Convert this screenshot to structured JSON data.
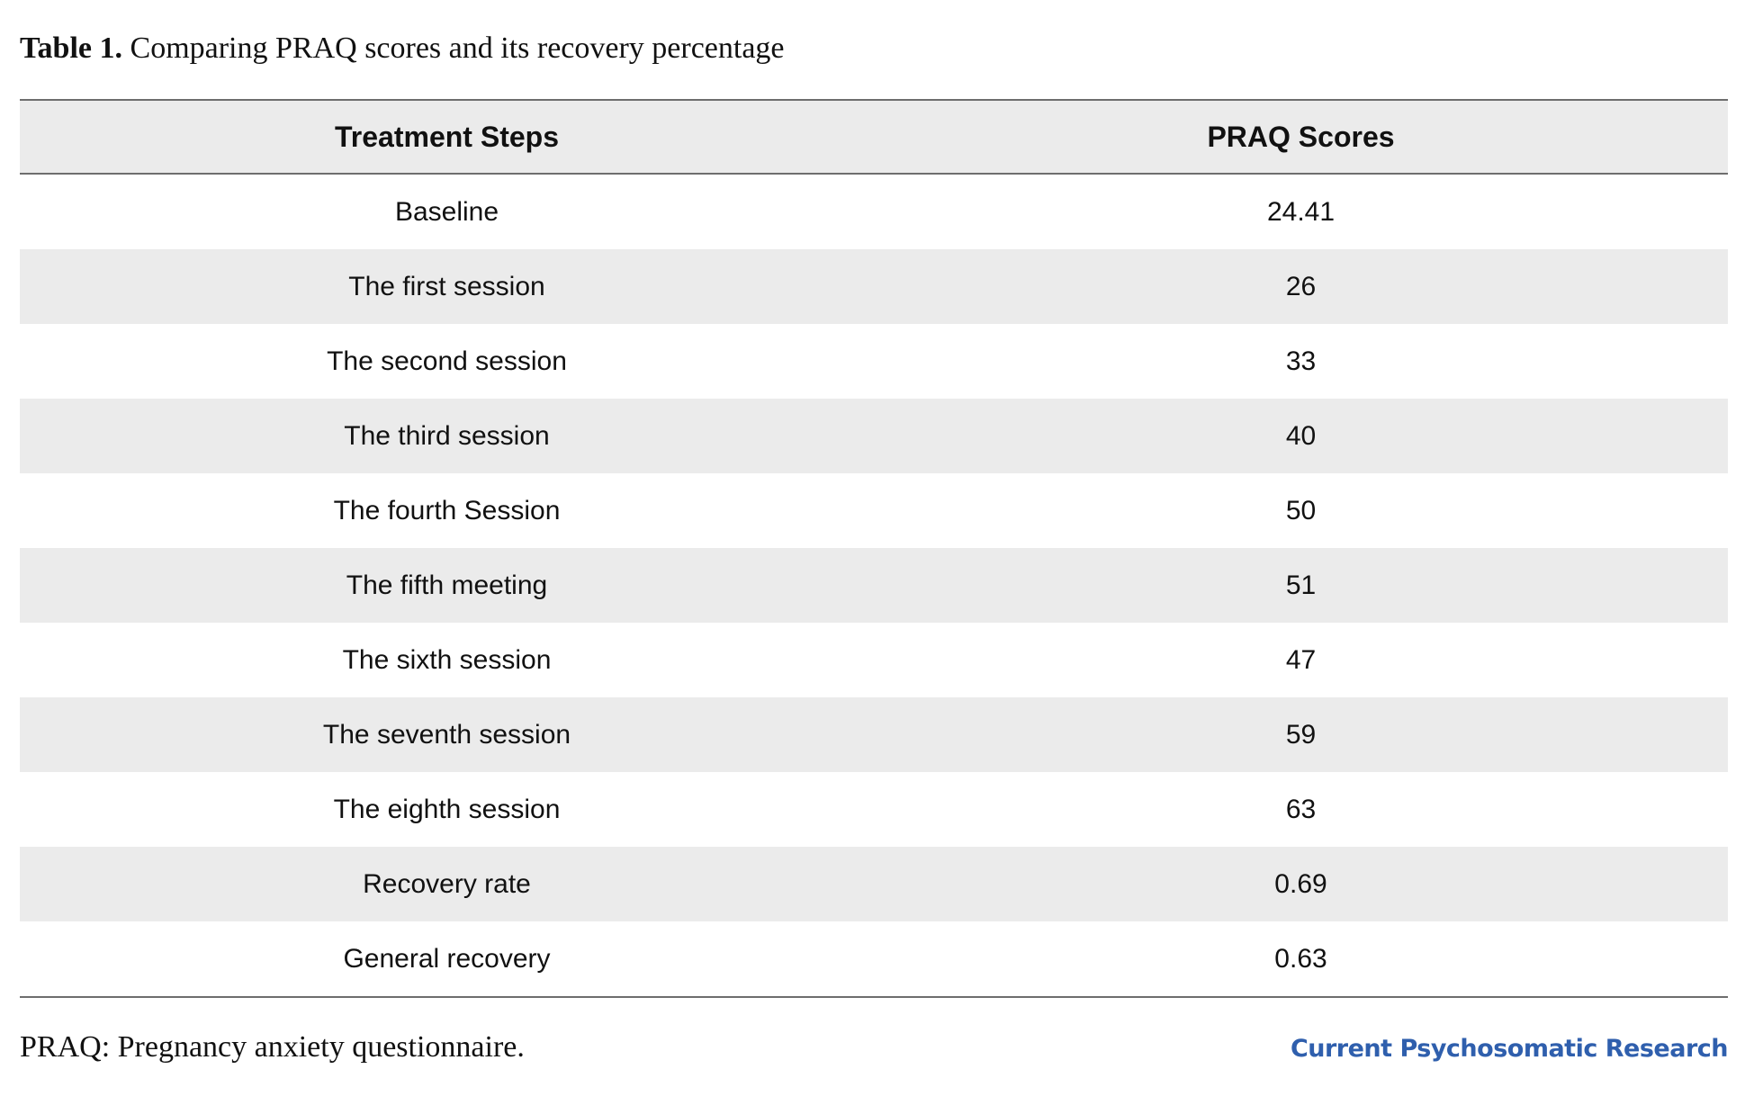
{
  "caption": {
    "label": "Table 1.",
    "text": "Comparing PRAQ scores and its recovery percentage"
  },
  "table": {
    "headers": [
      "Treatment Steps",
      "PRAQ Scores"
    ],
    "rows": [
      [
        "Baseline",
        "24.41"
      ],
      [
        "The first session",
        "26"
      ],
      [
        "The second session",
        "33"
      ],
      [
        "The third session",
        "40"
      ],
      [
        "The fourth Session",
        "50"
      ],
      [
        "The fifth meeting",
        "51"
      ],
      [
        "The sixth session",
        "47"
      ],
      [
        "The seventh session",
        "59"
      ],
      [
        "The eighth session",
        "63"
      ],
      [
        "Recovery rate",
        "0.69"
      ],
      [
        "General recovery",
        "0.63"
      ]
    ]
  },
  "footnote": "PRAQ: Pregnancy anxiety questionnaire.",
  "journal": "Current Psychosomatic Research",
  "colors": {
    "stripe": "#ebebeb",
    "rule": "#6e6e6e",
    "journal": "#2f5fad"
  }
}
